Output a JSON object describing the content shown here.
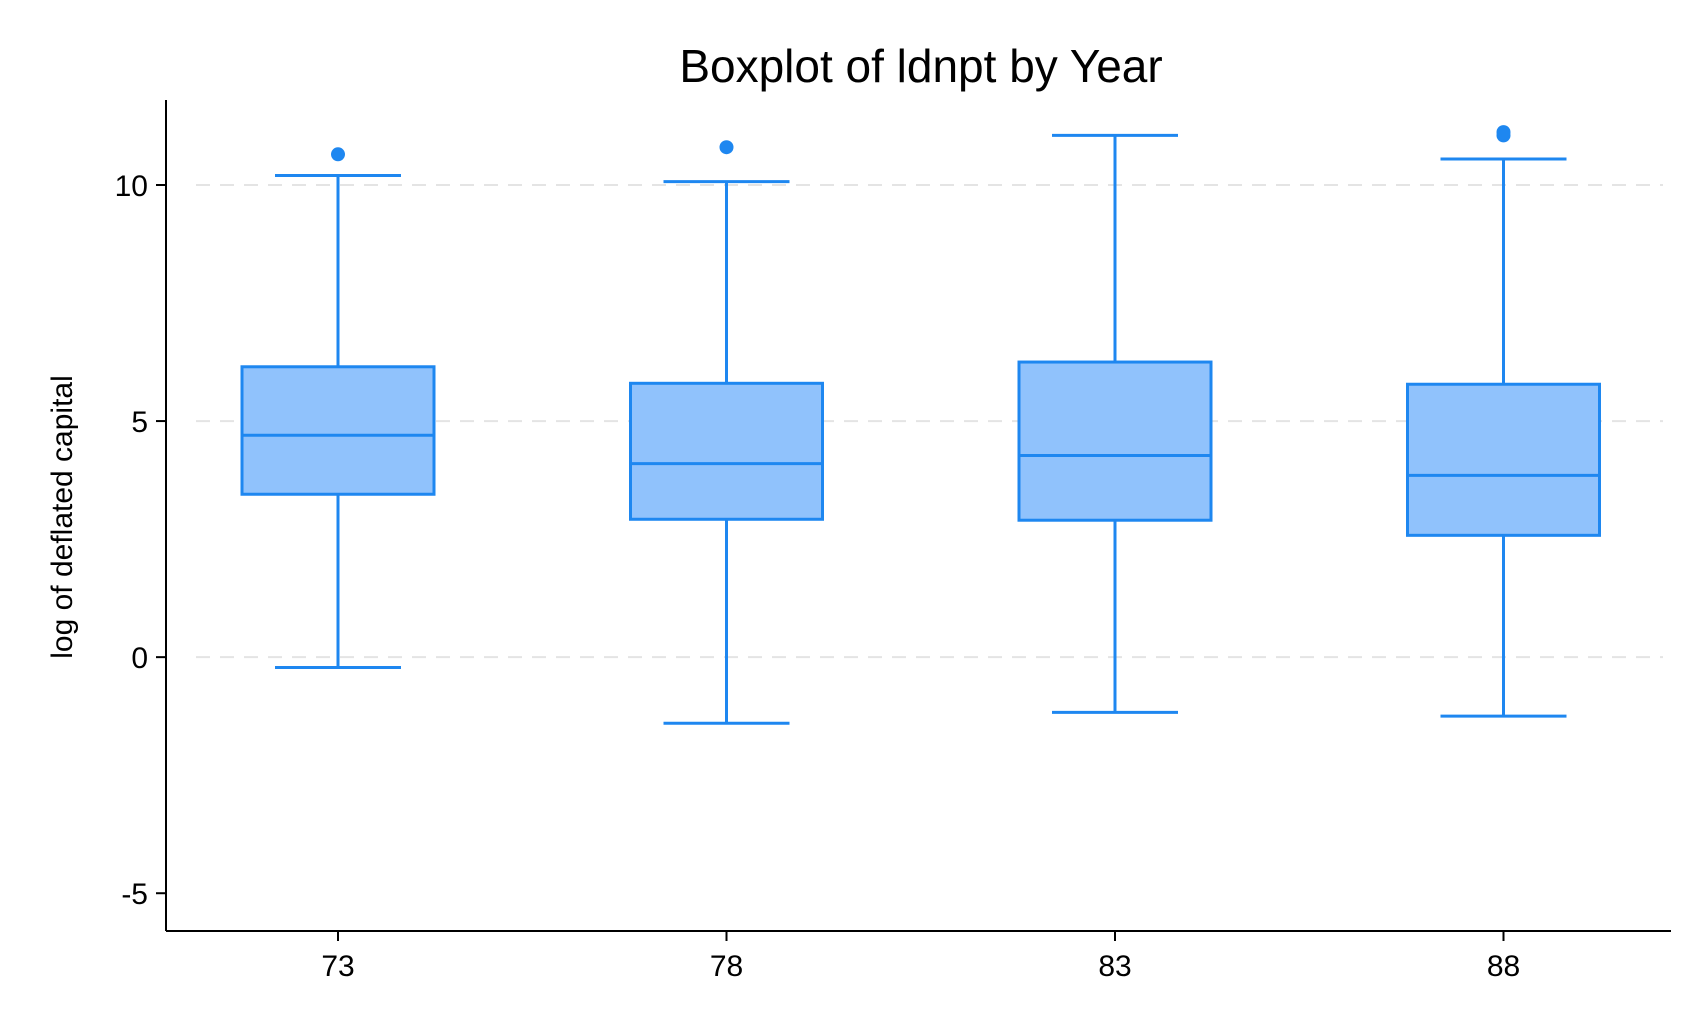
{
  "chart_data": {
    "type": "boxplot",
    "title": "Boxplot of ldnpt by Year",
    "xlabel": "",
    "ylabel": "log of deflated capital",
    "ylim": [
      -5.8,
      11.8
    ],
    "yticks": [
      10,
      5,
      0,
      -5
    ],
    "ytick_labels": [
      "10",
      "5",
      "0",
      "-5"
    ],
    "grid": "horizontal dashed at major ticks",
    "legend": "none",
    "colors": {
      "box_fill": "#90c2fc",
      "box_stroke": "#1e87f0",
      "outlier": "#1e87f0"
    },
    "categories": [
      "73",
      "78",
      "83",
      "88"
    ],
    "boxes": [
      {
        "category": "73",
        "whisker_low": -0.22,
        "q1": 3.45,
        "median": 4.7,
        "q3": 6.15,
        "whisker_high": 10.2,
        "outliers": [
          10.65
        ]
      },
      {
        "category": "78",
        "whisker_low": -1.4,
        "q1": 2.92,
        "median": 4.1,
        "q3": 5.8,
        "whisker_high": 10.07,
        "outliers": [
          10.8
        ]
      },
      {
        "category": "83",
        "whisker_low": -1.17,
        "q1": 2.9,
        "median": 4.27,
        "q3": 6.25,
        "whisker_high": 11.05,
        "outliers": []
      },
      {
        "category": "88",
        "whisker_low": -1.25,
        "q1": 2.58,
        "median": 3.85,
        "q3": 5.78,
        "whisker_high": 10.55,
        "outliers": [
          11.05,
          11.12
        ]
      }
    ]
  }
}
